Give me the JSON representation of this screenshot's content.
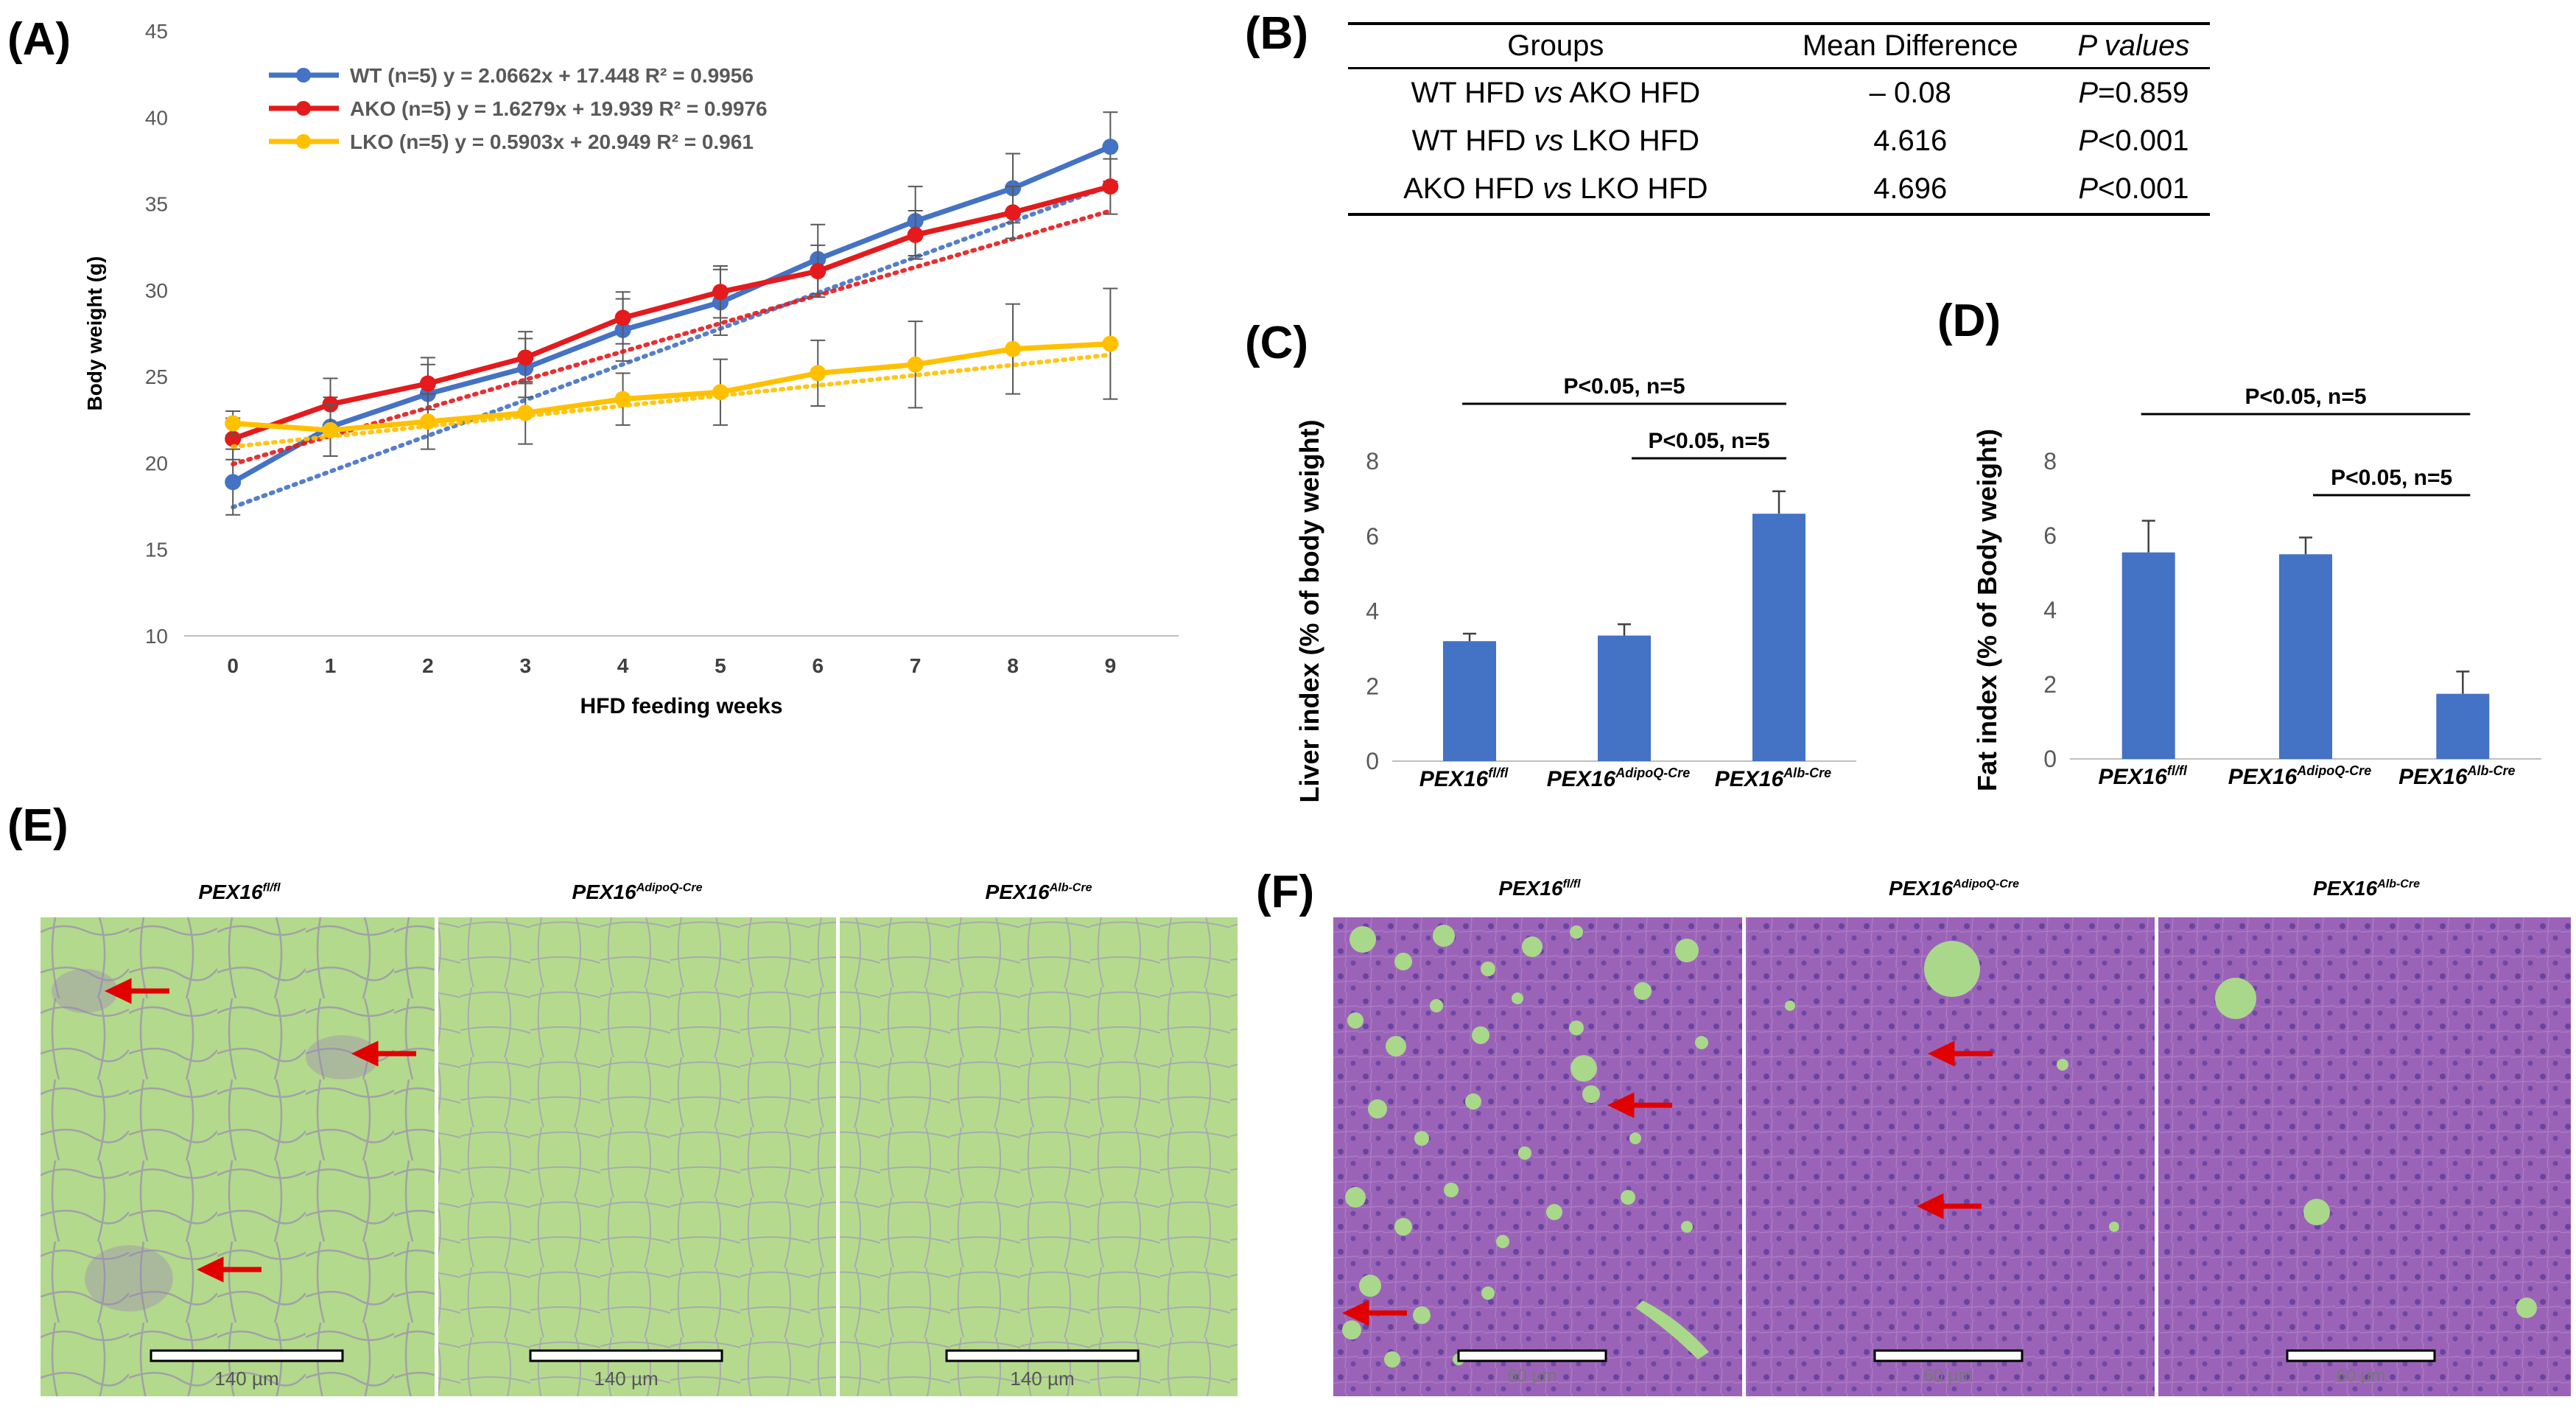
{
  "panels": {
    "a": "(A)",
    "b": "(B)",
    "c": "(C)",
    "d": "(D)",
    "e": "(E)",
    "f": "(F)"
  },
  "genotypes": {
    "base": "PEX16",
    "flfl": "fl/fl",
    "adipoq": "AdipoQ-Cre",
    "alb": "Alb-Cre"
  },
  "table_b": {
    "headers": [
      "Groups",
      "Mean Difference",
      "P values"
    ],
    "rows": [
      {
        "g1": "WT HFD",
        "vs": "vs",
        "g2": "AKO HFD",
        "diff": "– 0.08",
        "p": "P",
        "pval": "=0.859"
      },
      {
        "g1": "WT HFD",
        "vs": "vs",
        "g2": "LKO HFD",
        "diff": "4.616",
        "p": "P",
        "pval": "<0.001"
      },
      {
        "g1": "AKO HFD",
        "vs": "vs",
        "g2": "LKO HFD",
        "diff": "4.696",
        "p": "P",
        "pval": "<0.001"
      }
    ]
  },
  "histology": {
    "scale_e": "140 µm",
    "scale_f": "60 µm"
  },
  "chart_data": [
    {
      "id": "A",
      "type": "line",
      "xlabel": "HFD feeding weeks",
      "ylabel": "Body weight (g)",
      "ylim": [
        10,
        45
      ],
      "yticks": [
        10,
        15,
        20,
        25,
        30,
        35,
        40,
        45
      ],
      "x": [
        0,
        1,
        2,
        3,
        4,
        5,
        6,
        7,
        8,
        9
      ],
      "series": [
        {
          "name": "WT (n=5) y = 2.0662x + 17.448  R² = 0.9956",
          "color": "#4472C4",
          "values": [
            18.9,
            22.1,
            24.0,
            25.5,
            27.7,
            29.3,
            31.8,
            34.0,
            35.9,
            38.3
          ],
          "errors": [
            1.9,
            1.7,
            1.7,
            1.7,
            1.8,
            1.9,
            2.0,
            2.0,
            2.0,
            2.0
          ],
          "trend": [
            2.0662,
            17.448
          ]
        },
        {
          "name": "AKO (n=5)  y = 1.6279x + 19.939  R² = 0.9976",
          "color": "#E41A1C",
          "values": [
            21.4,
            23.4,
            24.6,
            26.1,
            28.4,
            29.9,
            31.1,
            33.2,
            34.5,
            36.0
          ],
          "errors": [
            1.2,
            1.5,
            1.5,
            1.5,
            1.5,
            1.5,
            1.5,
            1.4,
            1.5,
            1.6
          ],
          "trend": [
            1.6279,
            19.939
          ]
        },
        {
          "name": "LKO (n=5) y = 0.5903x + 20.949  R² = 0.961",
          "color": "#FFC000",
          "values": [
            22.3,
            21.9,
            22.4,
            22.9,
            23.7,
            24.1,
            25.2,
            25.7,
            26.6,
            26.9
          ],
          "errors": [
            0.7,
            1.5,
            1.6,
            1.8,
            1.5,
            1.9,
            1.9,
            2.5,
            2.6,
            3.2
          ],
          "trend": [
            0.5903,
            20.949
          ]
        }
      ]
    },
    {
      "id": "C",
      "type": "bar",
      "ylabel": "Liver index (% of body weight)",
      "ylim": [
        0,
        8
      ],
      "yticks": [
        0,
        2,
        4,
        6,
        8
      ],
      "categories": [
        "PEX16fl/fl",
        "PEX16AdipoQ-Cre",
        "PEX16Alb-Cre"
      ],
      "values": [
        3.2,
        3.35,
        6.6
      ],
      "errors": [
        0.2,
        0.3,
        0.6
      ],
      "annotations": [
        "P<0.05, n=5",
        "P<0.05, n=5"
      ]
    },
    {
      "id": "D",
      "type": "bar",
      "ylabel": "Fat index (% of Body weight)",
      "ylim": [
        0,
        8
      ],
      "yticks": [
        0,
        2,
        4,
        6,
        8
      ],
      "categories": [
        "PEX16fl/fl",
        "PEX16AdipoQ-Cre",
        "PEX16Alb-Cre"
      ],
      "values": [
        5.55,
        5.5,
        1.75
      ],
      "errors": [
        0.85,
        0.45,
        0.6
      ],
      "annotations": [
        "P<0.05, n=5",
        "P<0.05, n=5"
      ]
    }
  ]
}
